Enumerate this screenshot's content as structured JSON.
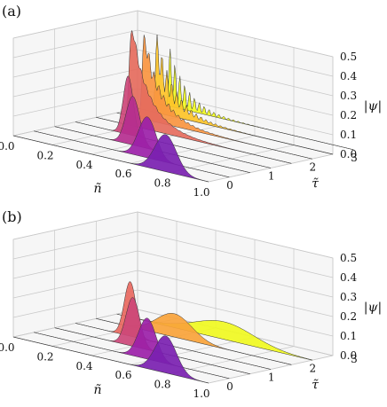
{
  "chart_data": [
    {
      "type": "area",
      "panel_label": "(a)",
      "xlabel": "ñ",
      "ylabel": "τ̃",
      "zlabel": "|ψ|",
      "xlim": [
        0.0,
        1.0
      ],
      "ylim": [
        0,
        3
      ],
      "zlim": [
        0.0,
        0.5
      ],
      "x_ticks": [
        "0.0",
        "0.2",
        "0.4",
        "0.6",
        "0.8",
        "1.0"
      ],
      "y_ticks": [
        "0",
        "1",
        "2",
        "3"
      ],
      "z_ticks": [
        "0.0",
        "0.1",
        "0.2",
        "0.3",
        "0.4",
        "0.5"
      ],
      "grid": true,
      "colormap": [
        "#0d0887",
        "#7e03a8",
        "#cc4778",
        "#f89540",
        "#f0f921"
      ],
      "series": [
        {
          "tau": 0.0,
          "center": 0.78,
          "width": 0.055,
          "amplitude": 0.19,
          "kind": "gaussian",
          "color": "#7a1fb0"
        },
        {
          "tau": 0.5,
          "center": 0.58,
          "width": 0.045,
          "amplitude": 0.21,
          "kind": "gaussian",
          "color": "#9b1fa8"
        },
        {
          "tau": 1.0,
          "center": 0.4,
          "width": 0.035,
          "amplitude": 0.25,
          "kind": "gaussian",
          "color": "#b52e8f"
        },
        {
          "tau": 1.5,
          "center": 0.27,
          "width": 0.025,
          "amplitude": 0.3,
          "kind": "gaussian",
          "color": "#cc4778"
        },
        {
          "tau": 2.0,
          "center": 0.18,
          "width": 0.012,
          "amplitude": 0.46,
          "kind": "comb",
          "color": "#e56b5d"
        },
        {
          "tau": 2.5,
          "center": 0.14,
          "width": 0.01,
          "amplitude": 0.43,
          "kind": "comb",
          "color": "#f89540"
        },
        {
          "tau": 3.0,
          "center": 0.1,
          "width": 0.008,
          "amplitude": 0.4,
          "kind": "comb",
          "color": "#fdc328"
        },
        {
          "tau": 3.5,
          "center": 0.06,
          "width": 0.006,
          "amplitude": 0.3,
          "kind": "comb",
          "color": "#f0f921"
        }
      ]
    },
    {
      "type": "area",
      "panel_label": "(b)",
      "xlabel": "ñ",
      "ylabel": "τ̃",
      "zlabel": "|ψ|",
      "xlim": [
        0.0,
        1.0
      ],
      "ylim": [
        0,
        3
      ],
      "zlim": [
        0.0,
        0.5
      ],
      "x_ticks": [
        "0.0",
        "0.2",
        "0.4",
        "0.6",
        "0.8",
        "1.0"
      ],
      "y_ticks": [
        "0",
        "1",
        "2",
        "3"
      ],
      "z_ticks": [
        "0.0",
        "0.1",
        "0.2",
        "0.3",
        "0.4",
        "0.5"
      ],
      "grid": true,
      "colormap": [
        "#0d0887",
        "#7e03a8",
        "#cc4778",
        "#f89540",
        "#f0f921"
      ],
      "series": [
        {
          "tau": 0.0,
          "center": 0.78,
          "width": 0.055,
          "amplitude": 0.19,
          "kind": "gaussian",
          "color": "#7a1fb0"
        },
        {
          "tau": 0.5,
          "center": 0.58,
          "width": 0.045,
          "amplitude": 0.21,
          "kind": "gaussian",
          "color": "#9b1fa8"
        },
        {
          "tau": 1.0,
          "center": 0.4,
          "width": 0.035,
          "amplitude": 0.25,
          "kind": "gaussian",
          "color": "#cc4778"
        },
        {
          "tau": 1.5,
          "center": 0.28,
          "width": 0.03,
          "amplitude": 0.28,
          "kind": "gaussian",
          "color": "#e8685f"
        },
        {
          "tau": 2.0,
          "center": 0.4,
          "width": 0.09,
          "amplitude": 0.12,
          "kind": "gaussian",
          "color": "#f9a33a"
        },
        {
          "tau": 2.5,
          "center": 0.55,
          "width": 0.15,
          "amplitude": 0.09,
          "kind": "gaussian",
          "color": "#f0f921"
        }
      ]
    }
  ]
}
